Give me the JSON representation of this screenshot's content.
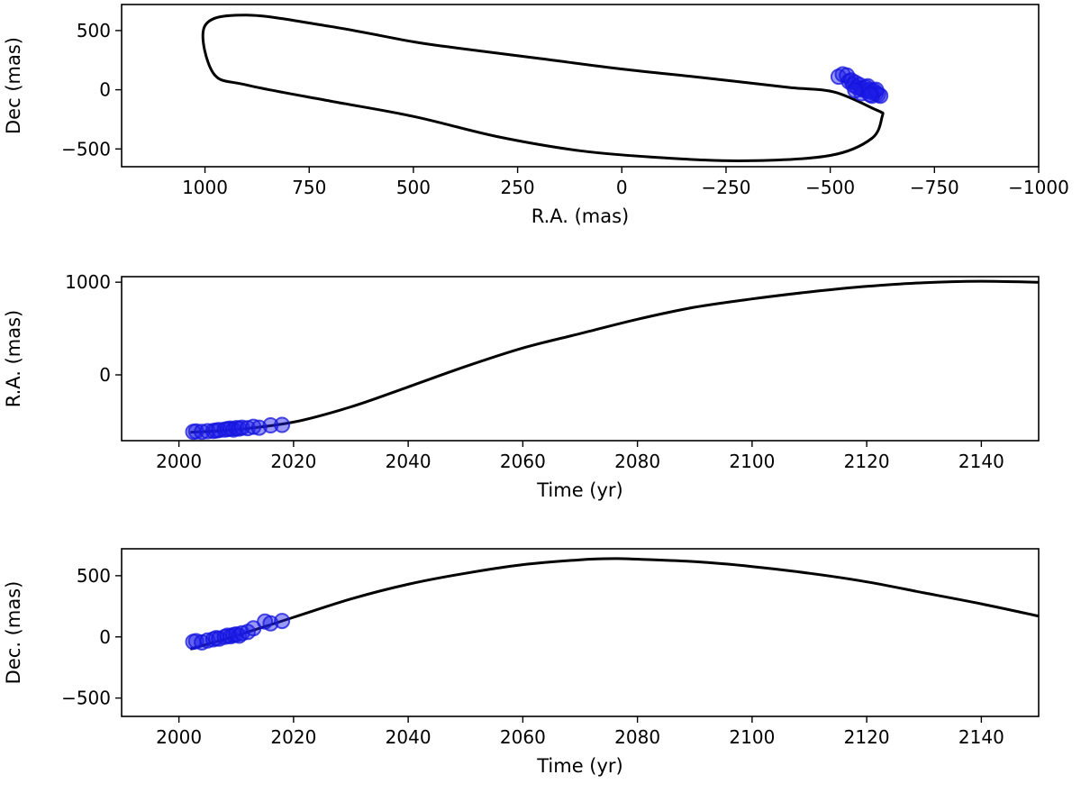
{
  "chart_data": [
    {
      "id": "sky",
      "type": "line",
      "xlabel": "R.A. (mas)",
      "ylabel": "Dec (mas)",
      "xlim": [
        1200,
        -1000
      ],
      "ylim": [
        -650,
        720
      ],
      "xticks": [
        1000,
        750,
        500,
        250,
        0,
        -250,
        -500,
        -750,
        -1000
      ],
      "xtick_labels": [
        "1000",
        "750",
        "500",
        "250",
        "0",
        "−250",
        "−500",
        "−750",
        "−1000"
      ],
      "yticks": [
        -500,
        0,
        500
      ],
      "ytick_labels": [
        "−500",
        "0",
        "500"
      ],
      "grid": false,
      "series": [
        {
          "kind": "line",
          "color": "#000000",
          "x": [
            -510,
            -400,
            -200,
            0,
            200,
            400,
            500,
            700,
            900,
            1000,
            980,
            900,
            700,
            500,
            300,
            100,
            -100,
            -300,
            -500,
            -600,
            -625,
            -622,
            -610,
            -510
          ],
          "y": [
            -20,
            20,
            100,
            175,
            265,
            355,
            405,
            535,
            630,
            540,
            140,
            40,
            -95,
            -225,
            -395,
            -515,
            -575,
            -600,
            -555,
            -410,
            -220,
            -190,
            -170,
            -20
          ]
        },
        {
          "kind": "scatter",
          "color": "#2020e0",
          "x": [
            -520,
            -530,
            -540,
            -545,
            -550,
            -555,
            -560,
            -565,
            -570,
            -575,
            -580,
            -585,
            -590,
            -595,
            -600,
            -605,
            -610,
            -615,
            -620,
            -575,
            -590,
            -600,
            -560,
            -610,
            -595
          ],
          "y": [
            110,
            130,
            120,
            70,
            80,
            40,
            60,
            20,
            40,
            10,
            0,
            20,
            -10,
            0,
            -20,
            -10,
            -30,
            -40,
            -50,
            -30,
            30,
            -50,
            -5,
            0,
            -40
          ]
        }
      ]
    },
    {
      "id": "ra-time",
      "type": "line",
      "xlabel": "Time (yr)",
      "ylabel": "R.A. (mas)",
      "xlim": [
        1990,
        2150
      ],
      "ylim": [
        -710,
        1060
      ],
      "xticks": [
        2000,
        2020,
        2040,
        2060,
        2080,
        2100,
        2120,
        2140
      ],
      "xtick_labels": [
        "2000",
        "2020",
        "2040",
        "2060",
        "2080",
        "2100",
        "2120",
        "2140"
      ],
      "yticks": [
        0,
        1000
      ],
      "ytick_labels": [
        "0",
        "1000"
      ],
      "grid": false,
      "series": [
        {
          "kind": "line",
          "color": "#000000",
          "x": [
            2002,
            2010,
            2020,
            2030,
            2040,
            2050,
            2060,
            2070,
            2080,
            2090,
            2100,
            2110,
            2120,
            2130,
            2140,
            2150
          ],
          "y": [
            -620,
            -590,
            -510,
            -345,
            -130,
            90,
            290,
            445,
            600,
            730,
            820,
            895,
            955,
            995,
            1010,
            1000
          ]
        },
        {
          "kind": "scatter",
          "color": "#2020e0",
          "x": [
            2002.5,
            2003,
            2004,
            2005,
            2006,
            2006.5,
            2007,
            2008,
            2008.5,
            2009,
            2009.5,
            2010,
            2010.5,
            2011,
            2012,
            2013,
            2014,
            2016,
            2018
          ],
          "y": [
            -615,
            -610,
            -615,
            -608,
            -605,
            -600,
            -595,
            -590,
            -585,
            -580,
            -590,
            -575,
            -580,
            -570,
            -575,
            -560,
            -570,
            -545,
            -540
          ]
        }
      ]
    },
    {
      "id": "dec-time",
      "type": "line",
      "xlabel": "Time (yr)",
      "ylabel": "Dec. (mas)",
      "xlim": [
        1990,
        2150
      ],
      "ylim": [
        -650,
        720
      ],
      "xticks": [
        2000,
        2020,
        2040,
        2060,
        2080,
        2100,
        2120,
        2140
      ],
      "xtick_labels": [
        "2000",
        "2020",
        "2040",
        "2060",
        "2080",
        "2100",
        "2120",
        "2140"
      ],
      "yticks": [
        -500,
        0,
        500
      ],
      "ytick_labels": [
        "−500",
        "0",
        "500"
      ],
      "grid": false,
      "series": [
        {
          "kind": "line",
          "color": "#000000",
          "x": [
            2002,
            2010,
            2020,
            2030,
            2040,
            2050,
            2060,
            2070,
            2076,
            2080,
            2090,
            2100,
            2110,
            2120,
            2130,
            2140,
            2150
          ],
          "y": [
            -100,
            10,
            160,
            310,
            430,
            520,
            590,
            630,
            640,
            635,
            615,
            575,
            520,
            450,
            360,
            270,
            170
          ]
        },
        {
          "kind": "scatter",
          "color": "#2020e0",
          "x": [
            2002.5,
            2003,
            2004,
            2005,
            2006,
            2006.5,
            2007,
            2008,
            2008.5,
            2009,
            2009.5,
            2010,
            2010.5,
            2011,
            2012,
            2013,
            2015,
            2016,
            2018
          ],
          "y": [
            -40,
            -35,
            -45,
            -30,
            -20,
            -10,
            -15,
            0,
            10,
            5,
            15,
            20,
            10,
            30,
            40,
            70,
            125,
            110,
            130
          ]
        }
      ]
    }
  ]
}
